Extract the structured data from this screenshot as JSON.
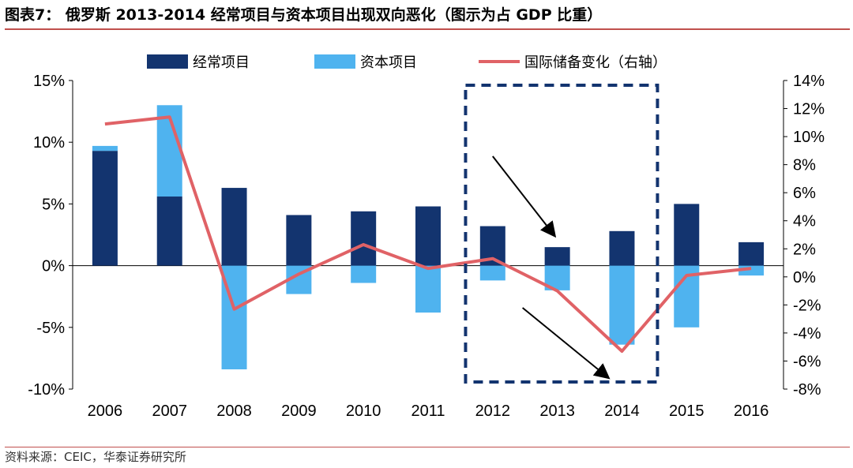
{
  "header": {
    "title": "图表7： 俄罗斯 2013-2014 经常项目与资本项目出现双向恶化（图示为占 GDP 比重）"
  },
  "footer": {
    "source": "资料来源：CEIC，华泰证券研究所"
  },
  "chart_data": {
    "type": "bar",
    "stacked": true,
    "categories": [
      "2006",
      "2007",
      "2008",
      "2009",
      "2010",
      "2011",
      "2012",
      "2013",
      "2014",
      "2015",
      "2016"
    ],
    "series": [
      {
        "name": "经常项目",
        "kind": "bar",
        "axis": "left",
        "color": "#13346f",
        "values": [
          9.3,
          5.6,
          6.3,
          4.1,
          4.4,
          4.8,
          3.2,
          1.5,
          2.8,
          5.0,
          1.9
        ]
      },
      {
        "name": "资本项目",
        "kind": "bar",
        "axis": "left",
        "color": "#4fb3ef",
        "values": [
          0.4,
          7.4,
          -8.4,
          -2.3,
          -1.4,
          -3.8,
          -1.2,
          -2.0,
          -6.4,
          -5.0,
          -0.8
        ]
      },
      {
        "name": "国际储备变化（右轴）",
        "kind": "line",
        "axis": "right",
        "color": "#e06266",
        "values": [
          10.9,
          11.4,
          -2.3,
          0.2,
          2.3,
          0.6,
          1.3,
          -1.0,
          -5.3,
          0.1,
          0.6
        ]
      }
    ],
    "y_left": {
      "ylim": [
        -10,
        15
      ],
      "ticks": [
        -10,
        -5,
        0,
        5,
        10,
        15
      ],
      "tick_labels": [
        "-10%",
        "-5%",
        "0%",
        "5%",
        "10%",
        "15%"
      ]
    },
    "y_right": {
      "ylim": [
        -8,
        14
      ],
      "ticks": [
        -8,
        -6,
        -4,
        -2,
        0,
        2,
        4,
        6,
        8,
        10,
        12,
        14
      ],
      "tick_labels": [
        "-8%",
        "-6%",
        "-4%",
        "-2%",
        "0%",
        "2%",
        "4%",
        "6%",
        "8%",
        "10%",
        "12%",
        "14%"
      ]
    },
    "legend_position": "top",
    "grid": false,
    "annotations": [
      {
        "type": "dashed-box",
        "from_category": "2012",
        "to_category": "2014"
      },
      {
        "type": "arrow",
        "near_category": "2013",
        "direction": "down-right"
      },
      {
        "type": "arrow",
        "near_category": "2014",
        "direction": "down-right"
      }
    ]
  }
}
